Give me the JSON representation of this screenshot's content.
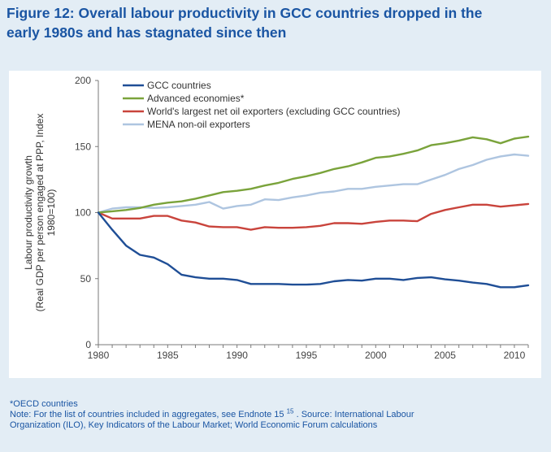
{
  "figure": {
    "title_line1": "Figure 12: Overall labour productivity in GCC countries dropped in the",
    "title_line2": "early 1980s and has stagnated since then"
  },
  "notes": {
    "footnote": "*OECD countries",
    "note_part1": "Note: For the list of countries included in aggregates, see Endnote 15",
    "note_ref": "15",
    "note_part2": ". Source: International Labour",
    "note_line2": "Organization (ILO), Key Indicators of the Labour Market; World Economic Forum calculations"
  },
  "chart_data": {
    "type": "line",
    "title": "",
    "xlabel": "",
    "ylabel_lines": [
      "Labour productivity growth",
      "(Real GDP per person engaged at PPP, Index",
      "1980=100)"
    ],
    "xlim": [
      1980,
      2011
    ],
    "ylim": [
      0,
      200
    ],
    "x_ticks": [
      1980,
      1985,
      1990,
      1995,
      2000,
      2005,
      2010
    ],
    "y_ticks": [
      0,
      50,
      100,
      150,
      200
    ],
    "grid": false,
    "legend_position": "top-left",
    "x": [
      1980,
      1981,
      1982,
      1983,
      1984,
      1985,
      1986,
      1987,
      1988,
      1989,
      1990,
      1991,
      1992,
      1993,
      1994,
      1995,
      1996,
      1997,
      1998,
      1999,
      2000,
      2001,
      2002,
      2003,
      2004,
      2005,
      2006,
      2007,
      2008,
      2009,
      2010,
      2011
    ],
    "series": [
      {
        "name": "GCC countries",
        "color": "#1f4e96",
        "values": [
          100,
          87,
          75,
          68,
          66,
          61,
          53,
          51,
          50,
          50,
          49,
          46,
          46,
          46,
          45.5,
          45.5,
          46,
          48,
          49,
          48.5,
          50,
          50,
          49,
          50.5,
          51,
          49.5,
          48.5,
          47,
          46,
          43.5,
          43.5,
          45
        ]
      },
      {
        "name": "Advanced economies*",
        "color": "#7aa33b",
        "values": [
          100,
          101,
          102,
          103.5,
          106,
          107.5,
          108.5,
          110.5,
          113,
          115.5,
          116.5,
          118,
          120.5,
          122.5,
          125.5,
          127.5,
          130,
          133,
          135,
          138,
          141.5,
          142.5,
          144.5,
          147,
          151,
          152.5,
          154.5,
          157,
          155.5,
          152.5,
          156,
          157.5
        ]
      },
      {
        "name": "World's largest net oil exporters (excluding GCC countries)",
        "color": "#c9443c",
        "values": [
          100,
          95.5,
          95.5,
          95.5,
          97.5,
          97.5,
          94,
          92.5,
          89.5,
          89,
          89,
          87,
          89,
          88.5,
          88.5,
          89,
          90,
          92,
          92,
          91.5,
          93,
          94,
          94,
          93.5,
          99,
          102,
          104,
          106,
          106,
          104.5,
          105.5,
          106.5
        ]
      },
      {
        "name": "MENA non-oil exporters",
        "color": "#aec5e0",
        "values": [
          100,
          103,
          104,
          104,
          103.5,
          104,
          105,
          106,
          108,
          103,
          105,
          106,
          110,
          109.5,
          111.5,
          113,
          115,
          116,
          118,
          118,
          119.5,
          120.5,
          121.5,
          121.5,
          125,
          128.5,
          133,
          136,
          140,
          142.5,
          144,
          143
        ]
      }
    ]
  }
}
